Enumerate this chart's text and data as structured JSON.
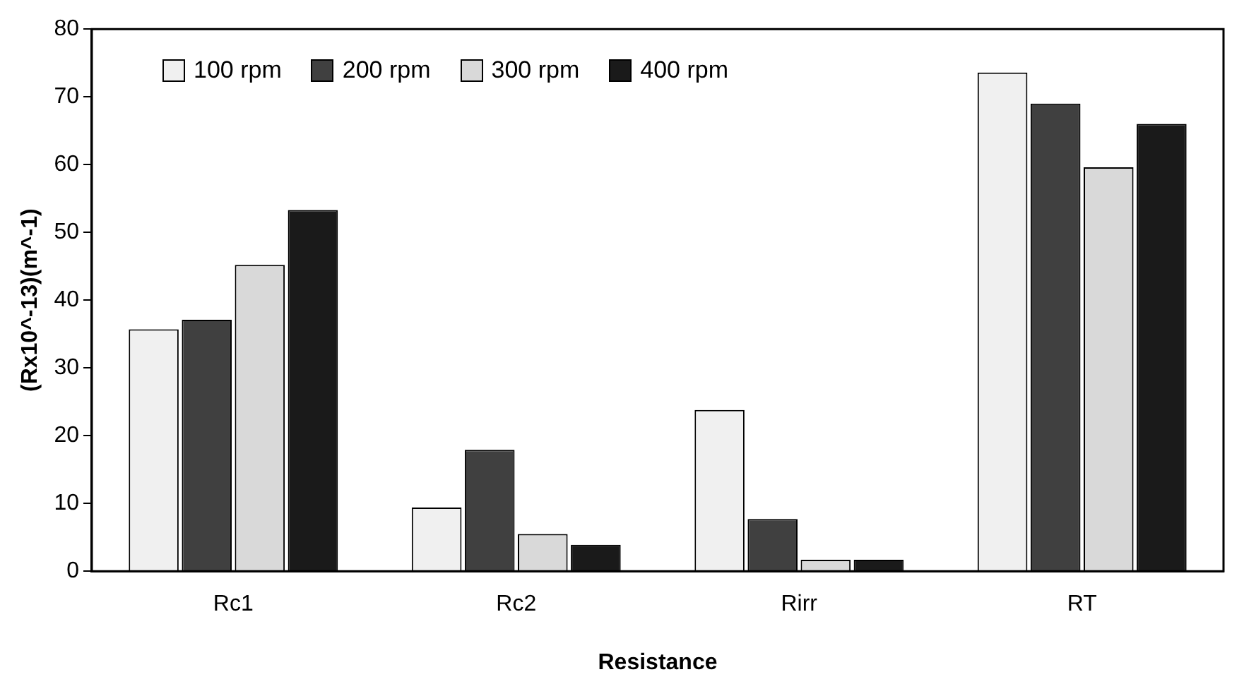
{
  "chart_data": {
    "type": "bar",
    "xlabel": "Resistance",
    "ylabel": "(Rx10^-13)(m^-1)",
    "categories": [
      "Rc1",
      "Rc2",
      "Rirr",
      "RT"
    ],
    "series": [
      {
        "name": "100 rpm",
        "color": "#f0f0f0",
        "values": [
          35.7,
          9.4,
          23.8,
          73.6
        ]
      },
      {
        "name": "200 rpm",
        "color": "#404040",
        "values": [
          37.1,
          17.9,
          7.7,
          69
        ]
      },
      {
        "name": "300 rpm",
        "color": "#d9d9d9",
        "values": [
          45.2,
          5.5,
          1.7,
          59.6
        ]
      },
      {
        "name": "400 rpm",
        "color": "#1a1a1a",
        "values": [
          53.3,
          3.9,
          1.7,
          66
        ]
      }
    ],
    "ylim": [
      0,
      80
    ],
    "yticks": [
      0,
      10,
      20,
      30,
      40,
      50,
      60,
      70,
      80
    ],
    "grid": false,
    "legend": "top left"
  }
}
